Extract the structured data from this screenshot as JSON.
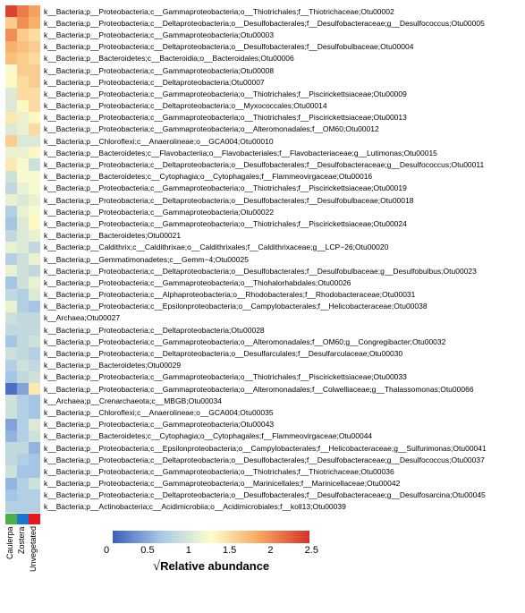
{
  "heatmap": {
    "type": "heatmap",
    "colorscale_min": 0,
    "colorscale_max": 2.5,
    "colorscale_ticks": [
      "0",
      "0.5",
      "1",
      "1.5",
      "2",
      "2.5"
    ],
    "colorscale_title_prefix": "√",
    "colorscale_title": "Relative abundance",
    "gradient_stops": [
      {
        "v": 0.0,
        "c": "#3a5fbd"
      },
      {
        "v": 0.25,
        "c": "#a9c9e6"
      },
      {
        "v": 0.5,
        "c": "#fefecb"
      },
      {
        "v": 0.75,
        "c": "#f7a65e"
      },
      {
        "v": 1.0,
        "c": "#d73027"
      }
    ],
    "groups": [
      {
        "name": "Caulerpa",
        "color": "#4daf4a"
      },
      {
        "name": "Zostera",
        "color": "#1976d2"
      },
      {
        "name": "Unvegetated",
        "color": "#e41a1c"
      }
    ],
    "rows": [
      {
        "label": "k__Bacteria;p__Proteobacteria;c__Gammaproteobacteria;o__Thiotrichales;f__Thiotrichaceae;Otu00002",
        "values": [
          2.4,
          2.1,
          1.9
        ]
      },
      {
        "label": "k__Bacteria;p__Proteobacteria;c__Deltaproteobacteria;o__Desulfobacterales;f__Desulfobacteraceae;g__Desulfococcus;Otu00005",
        "values": [
          1.6,
          2.0,
          1.8
        ]
      },
      {
        "label": "k__Bacteria;p__Proteobacteria;c__Gammaproteobacteria;Otu00003",
        "values": [
          2.0,
          1.6,
          1.5
        ]
      },
      {
        "label": "k__Bacteria;p__Proteobacteria;c__Deltaproteobacteria;o__Desulfobacterales;f__Desulfobulbaceae;Otu00004",
        "values": [
          1.8,
          1.7,
          1.6
        ]
      },
      {
        "label": "k__Bacteria;p__Bacteroidetes;c__Bacteroidia;o__Bacteroidales;Otu00006",
        "values": [
          1.7,
          1.6,
          1.5
        ]
      },
      {
        "label": "k__Bacteria;p__Proteobacteria;c__Gammaproteobacteria;Otu00008",
        "values": [
          1.2,
          1.6,
          1.6
        ]
      },
      {
        "label": "k__Bacteria;p__Proteobacteria;c__Deltaproteobacteria;Otu00007",
        "values": [
          1.3,
          1.5,
          1.6
        ]
      },
      {
        "label": "k__Bacteria;p__Proteobacteria;c__Gammaproteobacteria;o__Thiotrichales;f__Piscirickettsiaceae;Otu00009",
        "values": [
          1.0,
          1.5,
          1.5
        ]
      },
      {
        "label": "k__Bacteria;p__Proteobacteria;c__Deltaproteobacteria;o__Myxococcales;Otu00014",
        "values": [
          1.0,
          1.3,
          1.5
        ]
      },
      {
        "label": "k__Bacteria;p__Proteobacteria;c__Gammaproteobacteria;o__Thiotrichales;f__Piscirickettsiaceae;Otu00013",
        "values": [
          1.4,
          1.1,
          1.3
        ]
      },
      {
        "label": "k__Bacteria;p__Proteobacteria;c__Gammaproteobacteria;o__Alteromonadales;f__OM60;Otu00012",
        "values": [
          1.0,
          1.1,
          1.5
        ]
      },
      {
        "label": "k__Bacteria;p__Chloroflexi;c__Anaerolineae;o__GCA004;Otu00010",
        "values": [
          1.6,
          1.0,
          1.0
        ]
      },
      {
        "label": "k__Bacteria;p__Bacteroidetes;c__Flavobacteriia;o__Flavobacteriales;f__Flavobacteriaceae;g__Lutimonas;Otu00015",
        "values": [
          1.1,
          1.1,
          1.3
        ]
      },
      {
        "label": "k__Bacteria;p__Proteobacteria;c__Deltaproteobacteria;o__Desulfobacterales;f__Desulfobacteraceae;g__Desulfococcus;Otu00011",
        "values": [
          1.4,
          1.2,
          0.9
        ]
      },
      {
        "label": "k__Bacteria;p__Bacteroidetes;c__Cytophagia;o__Cytophagales;f__Flammeovirgaceae;Otu00016",
        "values": [
          0.9,
          1.2,
          1.2
        ]
      },
      {
        "label": "k__Bacteria;p__Proteobacteria;c__Gammaproteobacteria;o__Thiotrichales;f__Piscirickettsiaceae;Otu00019",
        "values": [
          0.8,
          1.1,
          1.2
        ]
      },
      {
        "label": "k__Bacteria;p__Proteobacteria;c__Deltaproteobacteria;o__Desulfobacterales;f__Desulfobulbaceae;Otu00018",
        "values": [
          1.1,
          1.0,
          1.1
        ]
      },
      {
        "label": "k__Bacteria;p__Proteobacteria;c__Gammaproteobacteria;Otu00022",
        "values": [
          0.7,
          1.1,
          1.2
        ]
      },
      {
        "label": "k__Bacteria;p__Proteobacteria;c__Gammaproteobacteria;o__Thiotrichales;f__Piscirickettsiaceae;Otu00024",
        "values": [
          0.6,
          1.0,
          1.3
        ]
      },
      {
        "label": "k__Bacteria;p__Bacteroidetes;Otu00021",
        "values": [
          0.8,
          1.0,
          1.1
        ]
      },
      {
        "label": "k__Bacteria;p__Caldithrix;c__Caldithrixae;o__Caldithrixales;f__Caldithrixaceae;g__LCP−26;Otu00020",
        "values": [
          1.1,
          1.0,
          0.8
        ]
      },
      {
        "label": "k__Bacteria;p__Gemmatimonadetes;c__Gemm−4;Otu00025",
        "values": [
          0.7,
          0.9,
          1.1
        ]
      },
      {
        "label": "k__Bacteria;p__Proteobacteria;c__Deltaproteobacteria;o__Desulfobacterales;f__Desulfobulbaceae;g__Desulfobulbus;Otu00023",
        "values": [
          1.1,
          0.9,
          0.8
        ]
      },
      {
        "label": "k__Bacteria;p__Proteobacteria;c__Gammaproteobacteria;o__Thiohalorhabdales;Otu00026",
        "values": [
          0.6,
          0.9,
          1.1
        ]
      },
      {
        "label": "k__Bacteria;p__Proteobacteria;c__Alphaproteobacteria;o__Rhodobacterales;f__Rhodobacteraceae;Otu00031",
        "values": [
          0.8,
          0.7,
          1.0
        ]
      },
      {
        "label": "k__Bacteria;p__Proteobacteria;c__Epsilonproteobacteria;o__Campylobacterales;f__Helicobacteraceae;Otu00038",
        "values": [
          1.1,
          0.7,
          0.6
        ]
      },
      {
        "label": "k__Archaea;Otu00027",
        "values": [
          0.9,
          0.8,
          0.8
        ]
      },
      {
        "label": "k__Bacteria;p__Proteobacteria;c__Deltaproteobacteria;Otu00028",
        "values": [
          0.8,
          0.8,
          0.8
        ]
      },
      {
        "label": "k__Bacteria;p__Proteobacteria;c__Gammaproteobacteria;o__Alteromonadales;f__OM60;g__Congregibacter;Otu00032",
        "values": [
          0.6,
          0.8,
          0.9
        ]
      },
      {
        "label": "k__Bacteria;p__Proteobacteria;c__Deltaproteobacteria;o__Desulfarculales;f__Desulfarculaceae;Otu00030",
        "values": [
          0.9,
          0.8,
          0.7
        ]
      },
      {
        "label": "k__Bacteria;p__Bacteroidetes;Otu00029",
        "values": [
          0.7,
          0.9,
          0.8
        ]
      },
      {
        "label": "k__Bacteria;p__Proteobacteria;c__Gammaproteobacteria;o__Thiotrichales;f__Piscirickettsiaceae;Otu00033",
        "values": [
          0.6,
          0.8,
          0.9
        ]
      },
      {
        "label": "k__Bacteria;p__Proteobacteria;c__Gammaproteobacteria;o__Alteromonadales;f__Colwelliaceae;g__Thalassomonas;Otu00066",
        "values": [
          0.1,
          0.4,
          1.4
        ]
      },
      {
        "label": "k__Archaea;p__Crenarchaeota;c__MBGB;Otu00034",
        "values": [
          0.9,
          0.7,
          0.6
        ]
      },
      {
        "label": "k__Bacteria;p__Chloroflexi;c__Anaerolineae;o__GCA004;Otu00035",
        "values": [
          0.9,
          0.7,
          0.6
        ]
      },
      {
        "label": "k__Bacteria;p__Proteobacteria;c__Gammaproteobacteria;Otu00043",
        "values": [
          0.4,
          0.7,
          1.0
        ]
      },
      {
        "label": "k__Bacteria;p__Bacteroidetes;c__Cytophagia;o__Cytophagales;f__Flammeovirgaceae;Otu00044",
        "values": [
          0.5,
          0.7,
          0.9
        ]
      },
      {
        "label": "k__Bacteria;p__Proteobacteria;c__Epsilonproteobacteria;o__Campylobacterales;f__Helicobacteraceae;g__Sulfurimonas;Otu00041",
        "values": [
          0.8,
          0.8,
          0.5
        ]
      },
      {
        "label": "k__Bacteria;p__Proteobacteria;c__Deltaproteobacteria;o__Desulfobacterales;f__Desulfobacteraceae;g__Desulfococcus;Otu00037",
        "values": [
          0.8,
          0.7,
          0.6
        ]
      },
      {
        "label": "k__Bacteria;p__Proteobacteria;c__Gammaproteobacteria;o__Thiotrichales;f__Thiotrichaceae;Otu00036",
        "values": [
          0.9,
          0.6,
          0.6
        ]
      },
      {
        "label": "k__Bacteria;p__Proteobacteria;c__Gammaproteobacteria;o__Marinicellales;f__Marinicellaceae;Otu00042",
        "values": [
          0.5,
          0.7,
          0.9
        ]
      },
      {
        "label": "k__Bacteria;p__Proteobacteria;c__Deltaproteobacteria;o__Desulfobacterales;f__Desulfobacteraceae;g__Desulfosarcina;Otu00045",
        "values": [
          0.6,
          0.7,
          0.7
        ]
      },
      {
        "label": "k__Bacteria;p__Actinobacteria;c__Acidimicrobiia;o__Acidimicrobiales;f__koll13;Otu00039",
        "values": [
          0.7,
          0.7,
          0.7
        ]
      }
    ]
  }
}
